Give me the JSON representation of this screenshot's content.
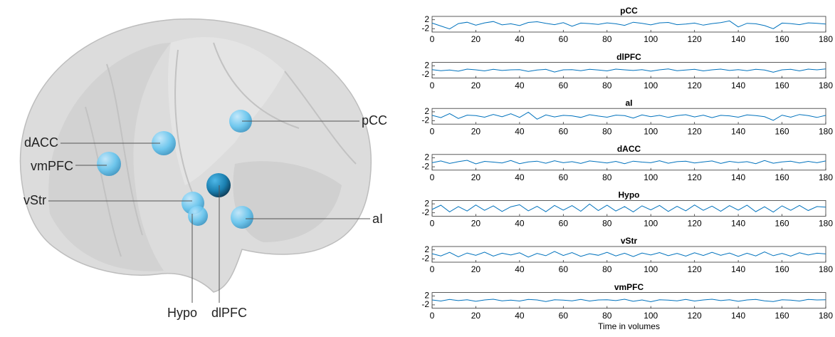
{
  "brain": {
    "labels": [
      "pCC",
      "dACC",
      "vmPFC",
      "vStr",
      "aI",
      "Hypo",
      "dlPFC"
    ]
  },
  "chart_data": [
    {
      "type": "line",
      "title": "pCC",
      "color": "#0072bd",
      "xlim": [
        0,
        180
      ],
      "ylim": [
        -3.5,
        3.5
      ],
      "xticks": [
        0,
        20,
        40,
        60,
        80,
        100,
        120,
        140,
        160,
        180
      ],
      "yticks": [
        -2,
        2
      ],
      "x": [
        0,
        4,
        8,
        12,
        16,
        20,
        24,
        28,
        32,
        36,
        40,
        44,
        48,
        52,
        56,
        60,
        64,
        68,
        72,
        76,
        80,
        84,
        88,
        92,
        96,
        100,
        104,
        108,
        112,
        116,
        120,
        124,
        128,
        132,
        136,
        140,
        144,
        148,
        152,
        156,
        160,
        164,
        168,
        172,
        176,
        180
      ],
      "values": [
        0.5,
        -0.8,
        -2.1,
        0.3,
        0.9,
        -0.4,
        0.6,
        1.2,
        -0.3,
        0.2,
        -0.6,
        0.8,
        1.1,
        0.4,
        -0.2,
        0.7,
        -0.9,
        0.5,
        0.3,
        -0.1,
        0.6,
        0.2,
        -0.5,
        0.9,
        0.4,
        -0.3,
        0.6,
        0.8,
        -0.2,
        0.1,
        0.5,
        -0.4,
        0.3,
        0.7,
        1.5,
        -1.2,
        0.4,
        0.2,
        -0.6,
        -2.0,
        0.5,
        0.3,
        -0.2,
        0.6,
        0.4,
        0.1
      ]
    },
    {
      "type": "line",
      "title": "dlPFC",
      "color": "#0072bd",
      "xlim": [
        0,
        180
      ],
      "ylim": [
        -3.5,
        3.5
      ],
      "xticks": [
        0,
        20,
        40,
        60,
        80,
        100,
        120,
        140,
        160,
        180
      ],
      "yticks": [
        -2,
        2
      ],
      "x": [
        0,
        4,
        8,
        12,
        16,
        20,
        24,
        28,
        32,
        36,
        40,
        44,
        48,
        52,
        56,
        60,
        64,
        68,
        72,
        76,
        80,
        84,
        88,
        92,
        96,
        100,
        104,
        108,
        112,
        116,
        120,
        124,
        128,
        132,
        136,
        140,
        144,
        148,
        152,
        156,
        160,
        164,
        168,
        172,
        176,
        180
      ],
      "values": [
        0.3,
        -0.2,
        0.1,
        -0.4,
        0.5,
        0.2,
        -0.3,
        0.4,
        -0.1,
        0.2,
        0.3,
        -0.5,
        0.1,
        0.4,
        -0.8,
        0.2,
        0.3,
        -0.2,
        0.4,
        0.1,
        -0.3,
        0.5,
        0.2,
        -0.1,
        0.3,
        -0.4,
        0.2,
        0.6,
        -0.2,
        0.1,
        0.4,
        -0.3,
        0.2,
        0.5,
        -0.1,
        0.3,
        -0.2,
        0.4,
        0.1,
        -0.9,
        0.2,
        0.4,
        -0.3,
        0.5,
        0.2,
        0.6
      ]
    },
    {
      "type": "line",
      "title": "aI",
      "color": "#0072bd",
      "xlim": [
        0,
        180
      ],
      "ylim": [
        -3.5,
        3.5
      ],
      "xticks": [
        0,
        20,
        40,
        60,
        80,
        100,
        120,
        140,
        160,
        180
      ],
      "yticks": [
        -2,
        2
      ],
      "x": [
        0,
        4,
        8,
        12,
        16,
        20,
        24,
        28,
        32,
        36,
        40,
        44,
        48,
        52,
        56,
        60,
        64,
        68,
        72,
        76,
        80,
        84,
        88,
        92,
        96,
        100,
        104,
        108,
        112,
        116,
        120,
        124,
        128,
        132,
        136,
        140,
        144,
        148,
        152,
        156,
        160,
        164,
        168,
        172,
        176,
        180
      ],
      "values": [
        0.4,
        -0.6,
        1.2,
        -1.0,
        0.5,
        0.3,
        -0.4,
        0.8,
        -0.2,
        1.1,
        -0.5,
        1.8,
        -1.3,
        0.6,
        -0.3,
        0.4,
        0.2,
        -0.5,
        0.7,
        0.1,
        -0.4,
        0.5,
        0.3,
        -0.8,
        0.6,
        -0.2,
        0.4,
        -0.5,
        0.3,
        0.7,
        -0.3,
        0.5,
        -0.6,
        0.4,
        0.2,
        -0.4,
        0.6,
        0.3,
        -0.2,
        -1.8,
        0.5,
        -0.4,
        0.8,
        0.3,
        -0.5,
        0.4
      ]
    },
    {
      "type": "line",
      "title": "dACC",
      "color": "#0072bd",
      "xlim": [
        0,
        180
      ],
      "ylim": [
        -3.5,
        3.5
      ],
      "xticks": [
        0,
        20,
        40,
        60,
        80,
        100,
        120,
        140,
        160,
        180
      ],
      "yticks": [
        -2,
        2
      ],
      "x": [
        0,
        4,
        8,
        12,
        16,
        20,
        24,
        28,
        32,
        36,
        40,
        44,
        48,
        52,
        56,
        60,
        64,
        68,
        72,
        76,
        80,
        84,
        88,
        92,
        96,
        100,
        104,
        108,
        112,
        116,
        120,
        124,
        128,
        132,
        136,
        140,
        144,
        148,
        152,
        156,
        160,
        164,
        168,
        172,
        176,
        180
      ],
      "values": [
        -0.2,
        0.6,
        -0.5,
        0.3,
        0.9,
        -0.7,
        0.4,
        0.1,
        -0.3,
        0.8,
        -0.6,
        0.2,
        0.5,
        -0.4,
        0.7,
        -0.2,
        0.3,
        -0.5,
        0.6,
        0.2,
        -0.3,
        0.4,
        -0.6,
        0.5,
        0.1,
        -0.2,
        0.7,
        -0.4,
        0.3,
        0.5,
        -0.3,
        0.2,
        0.6,
        -0.5,
        0.4,
        -0.1,
        0.3,
        -0.6,
        0.8,
        -0.4,
        0.2,
        0.5,
        -0.3,
        0.4,
        -0.2,
        0.6
      ]
    },
    {
      "type": "line",
      "title": "Hypo",
      "color": "#0072bd",
      "xlim": [
        0,
        180
      ],
      "ylim": [
        -3.5,
        3.5
      ],
      "xticks": [
        0,
        20,
        40,
        60,
        80,
        100,
        120,
        140,
        160,
        180
      ],
      "yticks": [
        -2,
        2
      ],
      "x": [
        0,
        4,
        8,
        12,
        16,
        20,
        24,
        28,
        32,
        36,
        40,
        44,
        48,
        52,
        56,
        60,
        64,
        68,
        72,
        76,
        80,
        84,
        88,
        92,
        96,
        100,
        104,
        108,
        112,
        116,
        120,
        124,
        128,
        132,
        136,
        140,
        144,
        148,
        152,
        156,
        160,
        164,
        168,
        172,
        176,
        180
      ],
      "values": [
        -0.5,
        1.4,
        -1.6,
        0.8,
        -1.2,
        1.5,
        -0.9,
        1.1,
        -1.4,
        0.7,
        1.6,
        -1.1,
        0.9,
        -1.5,
        1.3,
        -0.8,
        1.2,
        -1.3,
        1.9,
        -1.0,
        1.4,
        -1.2,
        0.8,
        -1.6,
        1.1,
        -0.7,
        1.3,
        -1.4,
        0.9,
        -1.1,
        1.5,
        -0.9,
        1.0,
        -1.3,
        1.2,
        -0.8,
        1.4,
        -1.5,
        0.7,
        -1.7,
        1.1,
        -0.9,
        1.3,
        -1.0,
        0.8,
        0.5
      ]
    },
    {
      "type": "line",
      "title": "vStr",
      "color": "#0072bd",
      "xlim": [
        0,
        180
      ],
      "ylim": [
        -3.5,
        3.5
      ],
      "xticks": [
        0,
        20,
        40,
        60,
        80,
        100,
        120,
        140,
        160,
        180
      ],
      "yticks": [
        -2,
        2
      ],
      "x": [
        0,
        4,
        8,
        12,
        16,
        20,
        24,
        28,
        32,
        36,
        40,
        44,
        48,
        52,
        56,
        60,
        64,
        68,
        72,
        76,
        80,
        84,
        88,
        92,
        96,
        100,
        104,
        108,
        112,
        116,
        120,
        124,
        128,
        132,
        136,
        140,
        144,
        148,
        152,
        156,
        160,
        164,
        168,
        172,
        176,
        180
      ],
      "values": [
        0.3,
        -0.7,
        0.9,
        -1.1,
        0.6,
        -0.4,
        1.0,
        -0.8,
        0.5,
        -0.3,
        0.7,
        -1.2,
        0.4,
        -0.6,
        1.3,
        -0.5,
        0.8,
        -0.9,
        0.3,
        -0.4,
        0.9,
        -0.7,
        0.5,
        -1.0,
        0.6,
        -0.3,
        0.8,
        -0.6,
        0.4,
        -0.8,
        0.7,
        -0.5,
        0.9,
        -0.4,
        0.6,
        -0.9,
        0.5,
        -0.7,
        1.1,
        -0.6,
        0.4,
        -0.8,
        0.7,
        -0.3,
        0.5,
        0.2
      ]
    },
    {
      "type": "line",
      "title": "vmPFC",
      "x_label": "Time in volumes",
      "color": "#0072bd",
      "xlim": [
        0,
        180
      ],
      "ylim": [
        -3.5,
        3.5
      ],
      "xticks": [
        0,
        20,
        40,
        60,
        80,
        100,
        120,
        140,
        160,
        180
      ],
      "yticks": [
        -2,
        2
      ],
      "x": [
        0,
        4,
        8,
        12,
        16,
        20,
        24,
        28,
        32,
        36,
        40,
        44,
        48,
        52,
        56,
        60,
        64,
        68,
        72,
        76,
        80,
        84,
        88,
        92,
        96,
        100,
        104,
        108,
        112,
        116,
        120,
        124,
        128,
        132,
        136,
        140,
        144,
        148,
        152,
        156,
        160,
        164,
        168,
        172,
        176,
        180
      ],
      "values": [
        0.2,
        -0.3,
        0.4,
        -0.1,
        0.3,
        -0.4,
        0.2,
        0.5,
        -0.2,
        0.1,
        -0.3,
        0.4,
        0.2,
        -0.5,
        0.3,
        0.1,
        -0.2,
        0.4,
        -0.3,
        0.2,
        0.3,
        -0.1,
        0.5,
        -0.4,
        0.2,
        -0.6,
        0.3,
        0.1,
        -0.2,
        0.4,
        -0.3,
        0.2,
        0.5,
        -0.1,
        0.3,
        -0.4,
        0.2,
        0.4,
        -0.2,
        -0.5,
        0.3,
        0.1,
        -0.3,
        0.4,
        0.2,
        0.3
      ]
    }
  ]
}
